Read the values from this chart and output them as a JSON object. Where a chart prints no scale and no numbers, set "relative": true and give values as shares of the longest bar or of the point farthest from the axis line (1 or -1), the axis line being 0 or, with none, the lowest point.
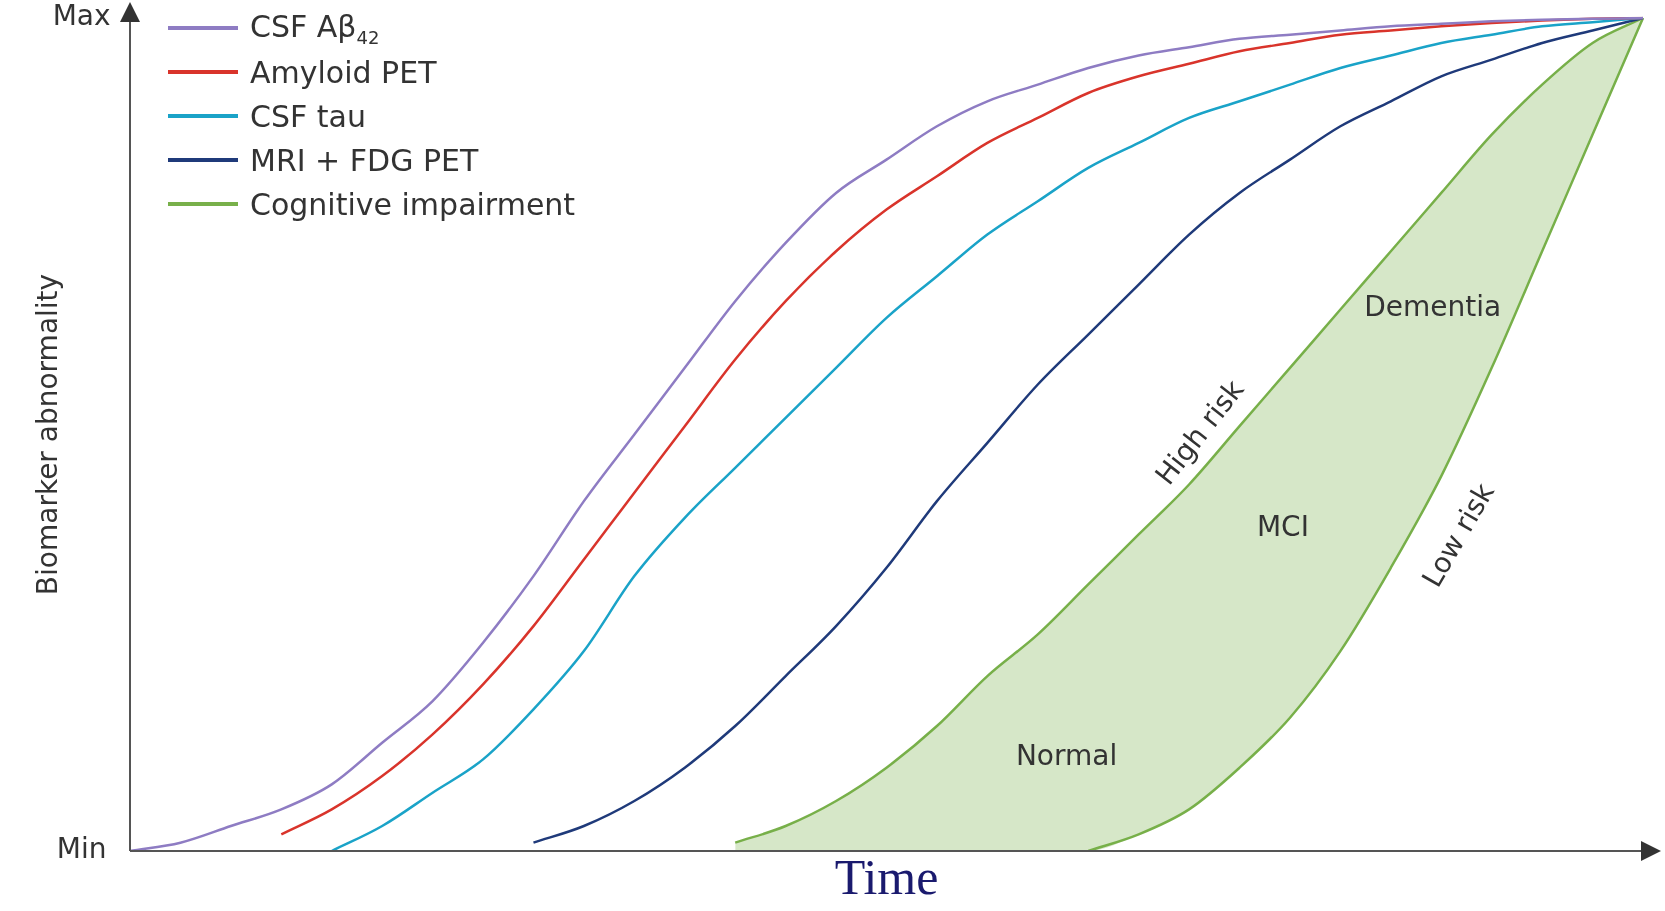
{
  "chart_data": {
    "type": "line",
    "xlabel": "Time",
    "ylabel": "Biomarker abnormality",
    "categories": [
      null,
      null,
      null,
      null,
      null,
      null,
      null,
      null,
      null,
      null,
      null,
      null,
      null,
      null,
      null,
      null,
      null,
      null,
      null,
      null,
      null,
      null,
      null,
      null,
      null,
      null,
      null,
      null,
      null,
      null,
      null
    ],
    "relative": true,
    "tick_labels": false,
    "grid": false,
    "legend": "top left",
    "marker": "none",
    "line_style": "solid",
    "series": [
      {
        "name": "CSF Aβ$_{42}$",
        "color": "#8e7cc3",
        "values": [
          0,
          0.01,
          0.03,
          0.05,
          0.08,
          0.13,
          0.18,
          0.25,
          0.33,
          0.42,
          0.5,
          0.58,
          0.66,
          0.73,
          0.79,
          0.83,
          0.87,
          0.9,
          0.92,
          0.94,
          0.955,
          0.965,
          0.975,
          0.98,
          0.985,
          0.99,
          0.993,
          0.996,
          0.998,
          0.999,
          1
        ]
      },
      {
        "name": "Amyloid PET",
        "color": "#d9342b",
        "values": [
          null,
          null,
          null,
          0.02,
          0.05,
          0.09,
          0.14,
          0.2,
          0.27,
          0.35,
          0.43,
          0.51,
          0.59,
          0.66,
          0.72,
          0.77,
          0.81,
          0.85,
          0.88,
          0.91,
          0.93,
          0.945,
          0.96,
          0.97,
          0.98,
          0.985,
          0.99,
          0.994,
          0.997,
          0.999,
          1
        ]
      },
      {
        "name": "CSF tau",
        "color": "#1aa3c8",
        "values": [
          null,
          null,
          null,
          null,
          0,
          0.03,
          0.07,
          0.11,
          0.17,
          0.24,
          0.33,
          0.4,
          0.46,
          0.52,
          0.58,
          0.64,
          0.69,
          0.74,
          0.78,
          0.82,
          0.85,
          0.88,
          0.9,
          0.92,
          0.94,
          0.955,
          0.97,
          0.98,
          0.99,
          0.995,
          1
        ]
      },
      {
        "name": "MRI + FDG PET",
        "color": "#1f3a7a",
        "values": [
          null,
          null,
          null,
          null,
          null,
          null,
          null,
          null,
          0.01,
          0.03,
          0.06,
          0.1,
          0.15,
          0.21,
          0.27,
          0.34,
          0.42,
          0.49,
          0.56,
          0.62,
          0.68,
          0.74,
          0.79,
          0.83,
          0.87,
          0.9,
          0.93,
          0.95,
          0.97,
          0.985,
          1
        ]
      },
      {
        "name": "Cognitive impairment",
        "color": "#78b04a",
        "values": [
          null,
          null,
          null,
          null,
          null,
          null,
          null,
          null,
          null,
          null,
          null,
          null,
          0.01,
          0.03,
          0.06,
          0.1,
          0.15,
          0.21,
          0.26,
          0.32,
          0.38,
          0.44,
          0.51,
          0.58,
          0.65,
          0.72,
          0.79,
          0.86,
          0.92,
          0.97,
          1
        ],
        "upper": [
          null,
          null,
          null,
          null,
          null,
          null,
          null,
          null,
          null,
          null,
          null,
          null,
          0.01,
          0.03,
          0.06,
          0.1,
          0.15,
          0.21,
          0.26,
          0.32,
          0.38,
          0.44,
          0.51,
          0.58,
          0.65,
          0.72,
          0.79,
          0.86,
          0.92,
          0.97,
          1
        ],
        "lower": [
          null,
          null,
          null,
          null,
          null,
          null,
          null,
          null,
          null,
          null,
          null,
          null,
          0,
          0,
          0,
          0,
          0,
          0,
          0,
          0,
          0.02,
          0.05,
          0.1,
          0.16,
          0.24,
          0.34,
          0.45,
          0.58,
          0.72,
          0.86,
          1
        ]
      },
      {
        "type": "line",
        "color": "#78b04a",
        "values": [
          null,
          null,
          null,
          null,
          null,
          null,
          null,
          null,
          null,
          null,
          null,
          null,
          null,
          null,
          null,
          null,
          null,
          null,
          null,
          0,
          0.02,
          0.05,
          0.1,
          0.16,
          0.24,
          0.34,
          0.45,
          0.58,
          0.72,
          0.86,
          1
        ]
      }
    ],
    "annotations": [
      "Max",
      "Min",
      "Dementia",
      "High risk",
      "MCI",
      "Low risk",
      "Normal"
    ]
  }
}
